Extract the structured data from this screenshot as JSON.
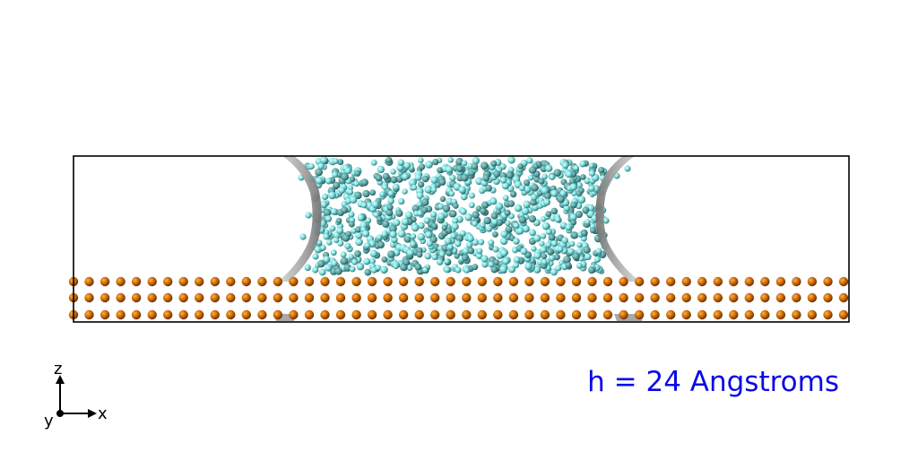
{
  "scene": {
    "annotation": "h = 24 Angstroms",
    "axes": {
      "x_label": "x",
      "y_label": "y",
      "z_label": "z"
    },
    "colors": {
      "background": "#ffffff",
      "annotation": "#0a0ae6",
      "box_outline": "#000000",
      "substrate_atom": "#c86400",
      "substrate_atom_dark": "#6b3500",
      "water_atom": "#7fe0e0",
      "water_atom_dark": "#3f7f7f",
      "interface_surface": "#9a9a9a"
    },
    "substrate_layers": 3,
    "atoms_per_layer": 50
  }
}
